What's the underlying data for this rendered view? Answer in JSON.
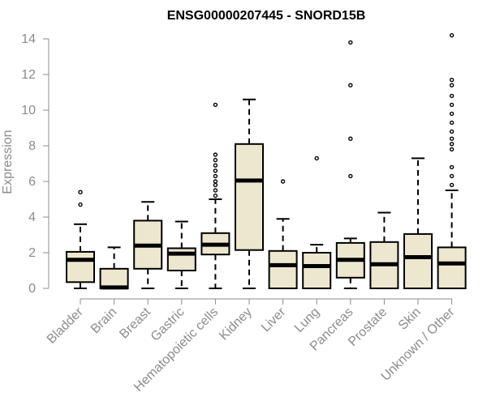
{
  "chart_data": {
    "type": "boxplot",
    "title": "ENSG00000207445 - SNORD15B",
    "xlabel": "",
    "ylabel": "Expression",
    "ylim": [
      0,
      14
    ],
    "yticks": [
      0,
      2,
      4,
      6,
      8,
      10,
      12,
      14
    ],
    "grid": false,
    "legend": "none",
    "box_fill": "#ede7cf",
    "box_stroke": "#000000",
    "categories": [
      "Bladder",
      "Brain",
      "Breast",
      "Gastric",
      "Hematopoietic cells",
      "Kidney",
      "Liver",
      "Lung",
      "Pancreas",
      "Prostate",
      "Skin",
      "Unknown / Other"
    ],
    "boxes": [
      {
        "category": "Bladder",
        "whisker_low": 0.0,
        "q1": 0.35,
        "median": 1.6,
        "q3": 2.05,
        "whisker_high": 3.6,
        "outliers": [
          4.7,
          5.4
        ]
      },
      {
        "category": "Brain",
        "whisker_low": 0.0,
        "q1": 0.0,
        "median": 0.05,
        "q3": 1.1,
        "whisker_high": 2.3,
        "outliers": []
      },
      {
        "category": "Breast",
        "whisker_low": 0.0,
        "q1": 1.1,
        "median": 2.4,
        "q3": 3.8,
        "whisker_high": 4.85,
        "outliers": []
      },
      {
        "category": "Gastric",
        "whisker_low": 0.0,
        "q1": 1.0,
        "median": 1.95,
        "q3": 2.25,
        "whisker_high": 3.75,
        "outliers": []
      },
      {
        "category": "Hematopoietic cells",
        "whisker_low": 0.0,
        "q1": 1.9,
        "median": 2.45,
        "q3": 3.1,
        "whisker_high": 5.0,
        "outliers": [
          5.2,
          5.5,
          5.8,
          6.0,
          6.3,
          6.6,
          6.9,
          7.2,
          7.5,
          10.3
        ]
      },
      {
        "category": "Kidney",
        "whisker_low": 0.0,
        "q1": 2.15,
        "median": 6.05,
        "q3": 8.1,
        "whisker_high": 10.6,
        "outliers": []
      },
      {
        "category": "Liver",
        "whisker_low": 0.0,
        "q1": 0.0,
        "median": 1.3,
        "q3": 2.1,
        "whisker_high": 3.9,
        "outliers": [
          6.0
        ]
      },
      {
        "category": "Lung",
        "whisker_low": 0.0,
        "q1": 0.0,
        "median": 1.25,
        "q3": 2.0,
        "whisker_high": 2.45,
        "outliers": [
          7.3
        ]
      },
      {
        "category": "Pancreas",
        "whisker_low": 0.0,
        "q1": 0.6,
        "median": 1.6,
        "q3": 2.55,
        "whisker_high": 2.8,
        "outliers": [
          6.3,
          8.4,
          11.4,
          13.8
        ]
      },
      {
        "category": "Prostate",
        "whisker_low": 0.0,
        "q1": 0.0,
        "median": 1.35,
        "q3": 2.6,
        "whisker_high": 4.25,
        "outliers": []
      },
      {
        "category": "Skin",
        "whisker_low": 0.0,
        "q1": 0.0,
        "median": 1.75,
        "q3": 3.05,
        "whisker_high": 7.3,
        "outliers": []
      },
      {
        "category": "Unknown / Other",
        "whisker_low": 0.0,
        "q1": 0.0,
        "median": 1.4,
        "q3": 2.3,
        "whisker_high": 5.5,
        "outliers": [
          5.8,
          6.3,
          6.8,
          7.8,
          8.1,
          8.4,
          8.8,
          9.3,
          9.8,
          10.3,
          10.8,
          11.4,
          11.7,
          14.2
        ]
      }
    ]
  }
}
